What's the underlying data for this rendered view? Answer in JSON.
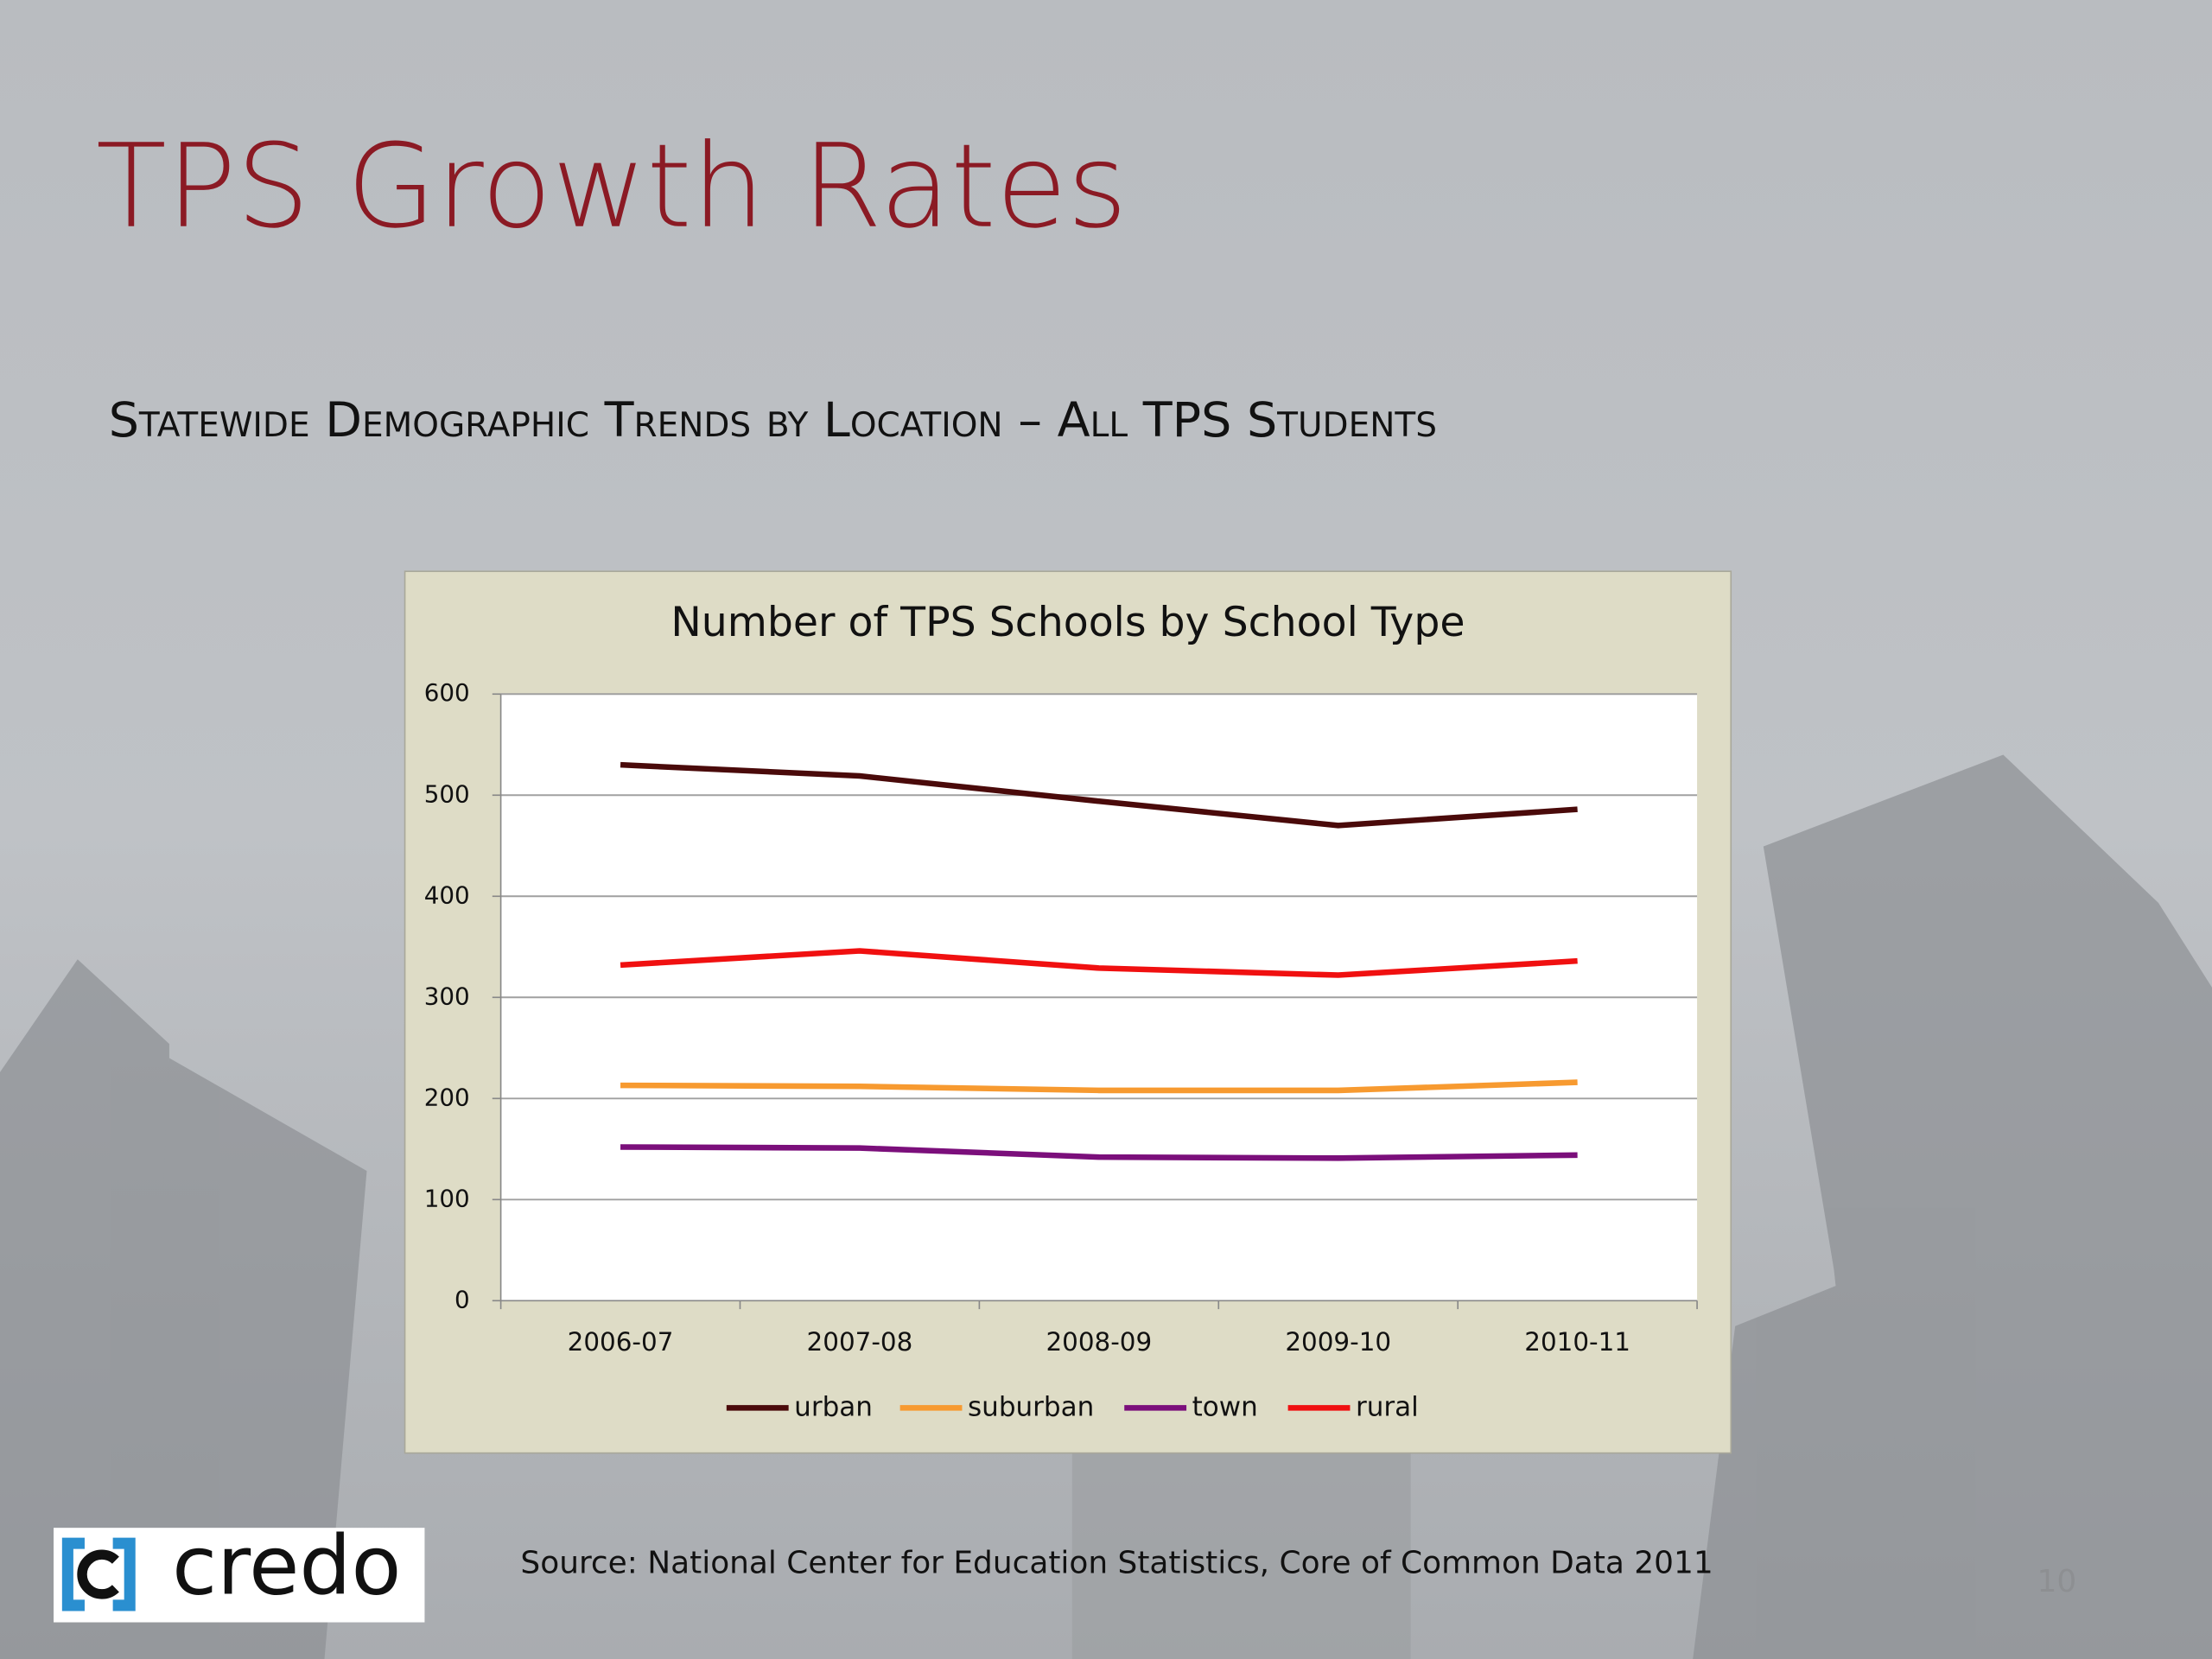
{
  "slide": {
    "title": "TPS Growth Rates",
    "subtitle": "Statewide Demographic Trends by Location – All TPS Students",
    "source": "Source:  National Center for Education Statistics, Core of Common Data 2011",
    "page_number": "10",
    "logo": "credo"
  },
  "chart_data": {
    "type": "line",
    "title": "Number of TPS Schools by School Type",
    "categories": [
      "2006-07",
      "2007-08",
      "2008-09",
      "2009-10",
      "2010-11"
    ],
    "series": [
      {
        "name": "urban",
        "color": "#4a0a0a",
        "values": [
          530,
          519,
          494,
          470,
          486
        ]
      },
      {
        "name": "suburban",
        "color": "#f79a30",
        "values": [
          213,
          212,
          208,
          208,
          216
        ]
      },
      {
        "name": "town",
        "color": "#7b0f7b",
        "values": [
          152,
          151,
          142,
          141,
          144
        ]
      },
      {
        "name": "rural",
        "color": "#f01010",
        "values": [
          332,
          346,
          329,
          322,
          336
        ]
      }
    ],
    "ylim": [
      0,
      600
    ],
    "yticks": [
      0,
      100,
      200,
      300,
      400,
      500,
      600
    ],
    "grid": true,
    "legend": "bottom"
  }
}
